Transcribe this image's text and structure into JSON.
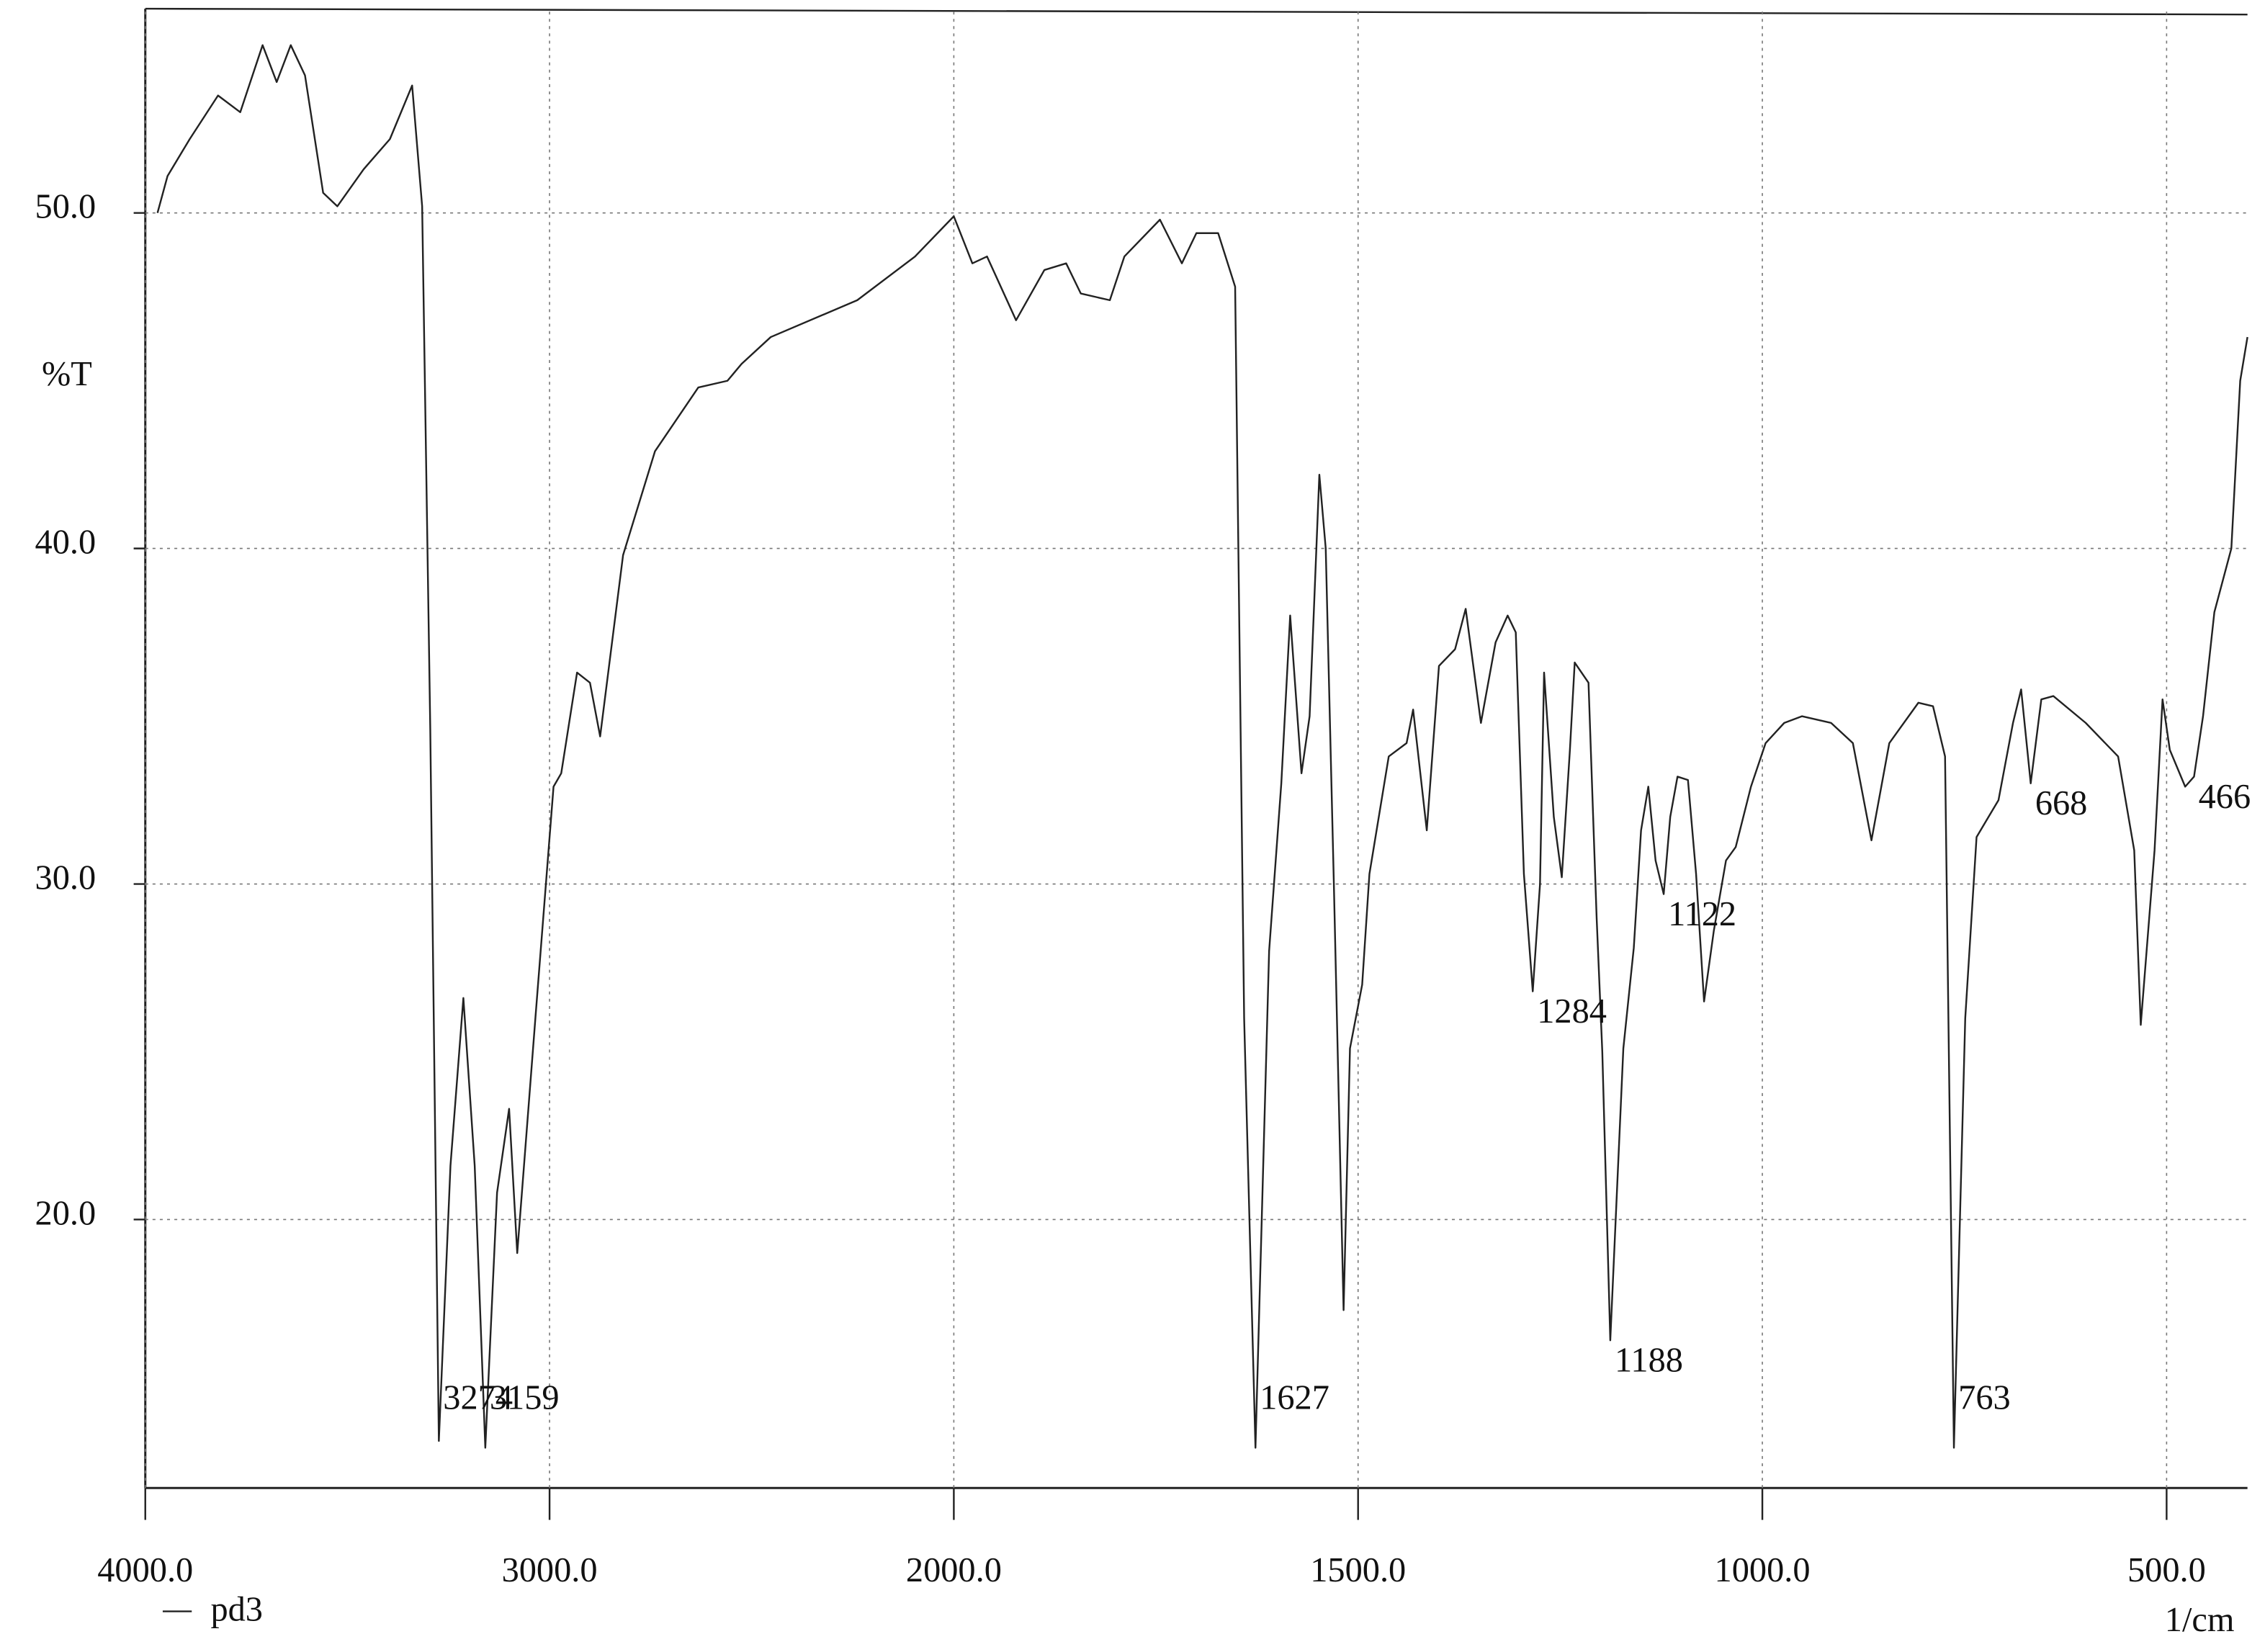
{
  "chart_data": {
    "type": "line",
    "ylabel": "%T",
    "xlabel": "1/cm",
    "x": [
      3970,
      3945,
      3890,
      3820,
      3765,
      3710,
      3675,
      3640,
      3605,
      3560,
      3525,
      3460,
      3395,
      3340,
      3315,
      3295,
      3274,
      3245,
      3213,
      3185,
      3159,
      3130,
      3100,
      3080,
      3035,
      2990,
      2971,
      2932,
      2900,
      2875,
      2818,
      2739,
      2632,
      2560,
      2525,
      2453,
      2239,
      2096,
      2000,
      1977,
      1959,
      1923,
      1888,
      1861,
      1843,
      1807,
      1789,
      1745,
      1718,
      1700,
      1673,
      1652,
      1641,
      1627,
      1610,
      1595,
      1584,
      1570,
      1560,
      1548,
      1540,
      1530,
      1518,
      1510,
      1495,
      1486,
      1462,
      1440,
      1432,
      1415,
      1400,
      1380,
      1367,
      1348,
      1330,
      1315,
      1305,
      1295,
      1284,
      1275,
      1270,
      1258,
      1248,
      1238,
      1232,
      1215,
      1205,
      1198,
      1188,
      1172,
      1159,
      1150,
      1141,
      1132,
      1122,
      1114,
      1105,
      1092,
      1082,
      1072,
      1060,
      1045,
      1033,
      1014,
      996,
      973,
      951,
      915,
      888,
      865,
      843,
      807,
      789,
      774,
      763,
      749,
      735,
      708,
      690,
      680,
      668,
      655,
      640,
      600,
      560,
      540,
      532,
      515,
      505,
      496,
      477,
      466,
      455,
      441,
      420,
      409,
      400
    ],
    "series": [
      {
        "name": "pd3",
        "color": "#222222",
        "values": [
          50.0,
          51.1,
          52.2,
          53.5,
          53.0,
          55.0,
          53.9,
          55.0,
          54.1,
          50.6,
          50.2,
          51.3,
          52.2,
          53.8,
          50.2,
          34.6,
          13.4,
          21.6,
          26.6,
          21.6,
          13.2,
          20.8,
          23.3,
          19.0,
          26.0,
          32.9,
          33.3,
          36.3,
          36.0,
          34.4,
          39.8,
          42.9,
          44.8,
          45.0,
          45.5,
          46.3,
          47.4,
          48.7,
          49.9,
          48.5,
          48.7,
          46.8,
          48.3,
          48.5,
          47.6,
          47.4,
          48.7,
          49.8,
          48.5,
          49.4,
          49.4,
          47.8,
          26.0,
          13.2,
          28.0,
          33.0,
          38.0,
          33.3,
          35.0,
          42.2,
          40.0,
          30.0,
          17.3,
          25.1,
          27.0,
          30.3,
          33.8,
          34.2,
          35.2,
          31.6,
          36.5,
          37.0,
          38.2,
          34.8,
          37.2,
          38.0,
          37.5,
          30.3,
          26.8,
          30.0,
          36.3,
          32.0,
          30.2,
          34.0,
          36.6,
          36.0,
          29.0,
          25.0,
          16.4,
          25.1,
          28.1,
          31.6,
          32.9,
          30.7,
          29.7,
          32.0,
          33.2,
          33.1,
          30.3,
          26.5,
          28.6,
          30.7,
          31.1,
          32.9,
          34.2,
          34.8,
          35.0,
          34.8,
          34.2,
          31.3,
          34.2,
          35.4,
          35.3,
          33.8,
          13.2,
          26.0,
          31.4,
          32.5,
          34.8,
          35.8,
          33.0,
          35.5,
          35.6,
          34.8,
          33.8,
          31.0,
          25.8,
          31.0,
          35.5,
          34.0,
          32.9,
          33.2,
          35.0,
          38.1,
          40.0,
          45.0,
          46.3
        ]
      }
    ],
    "peaks": [
      3274,
      3159,
      1627,
      1284,
      1188,
      1122,
      763,
      668,
      466
    ],
    "xlim": [
      4000,
      400
    ],
    "xticks": [
      {
        "value": 4000,
        "label": "4000.0"
      },
      {
        "value": 3000,
        "label": "3000.0"
      },
      {
        "value": 2000,
        "label": "2000.0"
      },
      {
        "value": 1500,
        "label": "1500.0"
      },
      {
        "value": 1000,
        "label": "1000.0"
      },
      {
        "value": 500,
        "label": "500.0"
      }
    ],
    "ylim": [
      12,
      56
    ],
    "yticks": [
      {
        "value": 20,
        "label": "20.0"
      },
      {
        "value": 30,
        "label": "30.0"
      },
      {
        "value": 40,
        "label": "40.0"
      },
      {
        "value": 50,
        "label": "50.0"
      }
    ],
    "grid": true
  }
}
